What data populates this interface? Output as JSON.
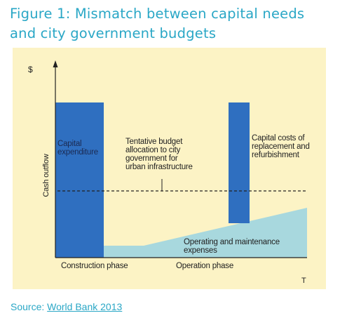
{
  "figure": {
    "title_line1": "Figure 1: Mismatch between capital needs",
    "title_line2": "and city government budgets"
  },
  "diagram": {
    "y_axis_symbol": "$",
    "x_axis_symbol": "T",
    "y_axis_label": "Cash outflow",
    "capital_expenditure": "Capital\nexpenditure",
    "budget_label": "Tentative budget\nallocation to city\ngovernment for\nurban infrastructure",
    "replacement_label": "Capital costs of\nreplacement and\nrefurbishment",
    "om_label": "Operating and maintenance\nexpenses",
    "construction_phase": "Construction phase",
    "operation_phase": "Operation phase",
    "colors": {
      "panel": "#fcf3c5",
      "capital_bar": "#2f6fc0",
      "om_area": "#a8d8de",
      "title": "#2aa7c6"
    }
  },
  "source": {
    "prefix": "Source: ",
    "link_text": "World Bank 2013"
  }
}
